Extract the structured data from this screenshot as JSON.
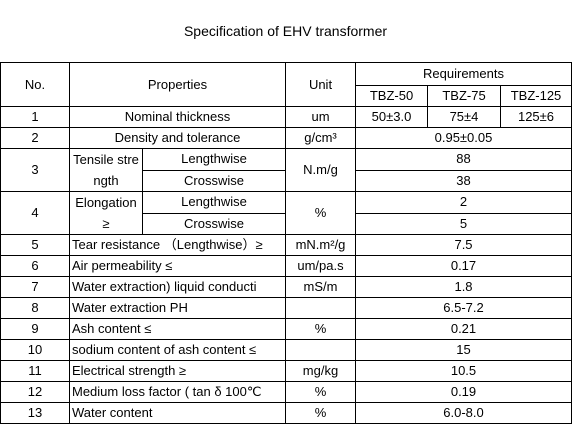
{
  "title": "Specification of EHV transformer",
  "header": {
    "no": "No.",
    "properties": "Properties",
    "unit": "Unit",
    "requirements": "Requirements",
    "grades": [
      "TBZ-50",
      "TBZ-75",
      "TBZ-125"
    ]
  },
  "rows": [
    {
      "no": "1",
      "property": "Nominal thickness",
      "unit": "um",
      "values": [
        "50±3.0",
        "75±4",
        "125±6"
      ]
    },
    {
      "no": "2",
      "property": "Density and  tolerance",
      "unit": "g/cm³",
      "values": [
        "0.95±0.05"
      ]
    },
    {
      "no": "3",
      "property": "Tensile strength",
      "unit": "N.m/g",
      "sub": [
        {
          "name": "Lengthwise",
          "value": "88"
        },
        {
          "name": "Crosswise",
          "value": "38"
        }
      ]
    },
    {
      "no": "4",
      "property": "Elongation ≥",
      "unit": "%",
      "sub": [
        {
          "name": "Lengthwise",
          "value": "2"
        },
        {
          "name": "Crosswise",
          "value": "5"
        }
      ]
    },
    {
      "no": "5",
      "property": "Tear resistance （Lengthwise）≥",
      "unit": "mN.m²/g",
      "values": [
        "7.5"
      ]
    },
    {
      "no": "6",
      "property": "Air permeability ≤",
      "unit": "um/pa.s",
      "values": [
        "0.17"
      ]
    },
    {
      "no": "7",
      "property": "Water extraction) liquid conducti",
      "unit": "mS/m",
      "values": [
        "1.8"
      ]
    },
    {
      "no": "8",
      "property": "Water extraction PH",
      "unit": "",
      "values": [
        "6.5-7.2"
      ]
    },
    {
      "no": "9",
      "property": "Ash content ≤",
      "unit": "%",
      "values": [
        "0.21"
      ]
    },
    {
      "no": "10",
      "property": "sodium content of ash content ≤",
      "unit": "",
      "values": [
        "15"
      ]
    },
    {
      "no": "11",
      "property": "Electrical strength ≥",
      "unit": "mg/kg",
      "values": [
        "10.5"
      ]
    },
    {
      "no": "12",
      "property": "Medium loss factor ( tan δ 100℃",
      "unit": "%",
      "values": [
        "0.19"
      ]
    },
    {
      "no": "13",
      "property": "Water content",
      "unit": "%",
      "values": [
        "6.0-8.0"
      ]
    }
  ]
}
